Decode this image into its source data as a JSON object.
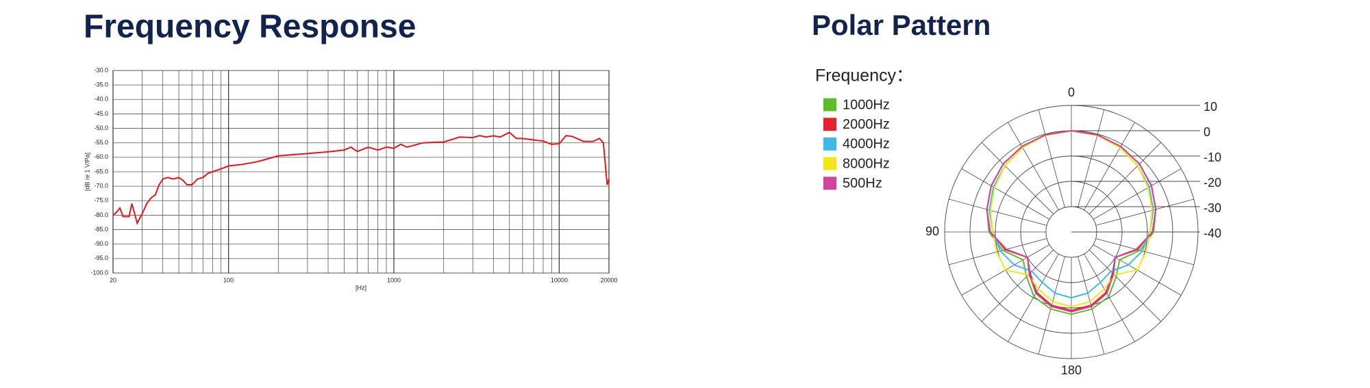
{
  "chart_data": [
    {
      "type": "line",
      "title": "Frequency Response",
      "xlabel": "[Hz]",
      "ylabel": "[dB re 1 V/Pa]",
      "xscale": "log",
      "grid": true,
      "x": [
        20,
        21,
        22,
        23,
        25,
        26,
        28,
        30,
        32,
        34,
        36,
        38,
        40,
        43,
        46,
        50,
        53,
        56,
        60,
        65,
        70,
        75,
        80,
        90,
        100,
        120,
        150,
        200,
        300,
        400,
        500,
        550,
        600,
        700,
        800,
        900,
        1000,
        1100,
        1200,
        1500,
        2000,
        2200,
        2500,
        3000,
        3300,
        3600,
        4000,
        4400,
        5000,
        5500,
        6000,
        7000,
        8000,
        9000,
        10000,
        11000,
        12000,
        14000,
        16000,
        17500,
        18500,
        19500,
        20000
      ],
      "series": [
        {
          "name": "Frequency Response",
          "color": "#e8141c",
          "values": [
            -80,
            -79,
            -77.5,
            -80.5,
            -80.5,
            -76,
            -82.8,
            -79.5,
            -76,
            -74,
            -73,
            -69.5,
            -67.5,
            -67,
            -67.5,
            -67,
            -68,
            -69.5,
            -69.5,
            -67.5,
            -67,
            -65.5,
            -65,
            -64,
            -63,
            -62.5,
            -61.5,
            -59.5,
            -58.7,
            -58.1,
            -57.5,
            -56.5,
            -58,
            -56.5,
            -57.5,
            -56.5,
            -56.9,
            -55.5,
            -56.5,
            -55,
            -54.7,
            -54,
            -53,
            -53.2,
            -52.5,
            -53,
            -52.6,
            -53,
            -51.4,
            -53.5,
            -53.5,
            -54,
            -54.4,
            -55.5,
            -55.3,
            -52.5,
            -52.8,
            -54.5,
            -54.5,
            -53.5,
            -55,
            -69.5,
            -67.5
          ]
        }
      ],
      "xlim": [
        20,
        20000
      ],
      "xticks": [
        20,
        100,
        1000,
        10000,
        20000
      ],
      "xminorticks": [
        30,
        40,
        50,
        60,
        70,
        80,
        90,
        200,
        300,
        400,
        500,
        600,
        700,
        800,
        900,
        2000,
        3000,
        4000,
        5000,
        6000,
        7000,
        8000,
        9000
      ],
      "ylim": [
        -100,
        -30
      ],
      "yticks": [
        {
          "value": -30,
          "label": "-30.0"
        },
        {
          "value": -35,
          "label": "-35.0"
        },
        {
          "value": -40,
          "label": "-40.0"
        },
        {
          "value": -45,
          "label": "-45.0"
        },
        {
          "value": -50,
          "label": "-50.0"
        },
        {
          "value": -55,
          "label": "-55.0"
        },
        {
          "value": -60,
          "label": "-60.0"
        },
        {
          "value": -65,
          "label": "-65.0"
        },
        {
          "value": -70,
          "label": "-70.0"
        },
        {
          "value": -75,
          "label": "-75.0"
        },
        {
          "value": -80,
          "label": "-80.0"
        },
        {
          "value": -85,
          "label": "-85.0"
        },
        {
          "value": -90,
          "label": "-90.0"
        },
        {
          "value": -95,
          "label": "-95.0"
        },
        {
          "value": -100,
          "label": "-100.0"
        }
      ]
    },
    {
      "type": "polar",
      "title": "Polar Pattern",
      "legend_title": "Frequency：",
      "theta": [
        0,
        15,
        30,
        45,
        60,
        75,
        90,
        105,
        120,
        135,
        150,
        165,
        180,
        195,
        210,
        225,
        240,
        255,
        270,
        285,
        300,
        315,
        330,
        345
      ],
      "thetaticks": [
        0,
        90,
        180
      ],
      "rlim": [
        -40,
        10
      ],
      "rticks": [
        -40,
        -30,
        -20,
        -10,
        0,
        10
      ],
      "series": [
        {
          "name": "1000Hz",
          "color": "#5dbb2e",
          "values": [
            0,
            -0.3,
            -1,
            -2,
            -3.5,
            -5.5,
            -7.5,
            -12,
            -18,
            -15,
            -10.5,
            -8.5,
            -7.5,
            -8.5,
            -10.5,
            -15,
            -18,
            -12,
            -7.5,
            -5.5,
            -3.5,
            -2,
            -1,
            -0.3
          ]
        },
        {
          "name": "2000Hz",
          "color": "#e3242b",
          "values": [
            0,
            -0.3,
            -1,
            -2,
            -3.5,
            -5.5,
            -8,
            -13,
            -20,
            -17,
            -12.5,
            -10,
            -9,
            -10,
            -12.5,
            -17,
            -20,
            -13,
            -8,
            -5.5,
            -3.5,
            -2,
            -1,
            -0.3
          ]
        },
        {
          "name": "4000Hz",
          "color": "#3fb8e6",
          "values": [
            0,
            -0.5,
            -1.5,
            -3,
            -4.5,
            -6.5,
            -9,
            -11,
            -14,
            -18,
            -17,
            -15,
            -14,
            -15,
            -17,
            -18,
            -14,
            -11,
            -9,
            -6.5,
            -4.5,
            -3,
            -1.5,
            -0.5
          ]
        },
        {
          "name": "8000Hz",
          "color": "#f2e61a",
          "values": [
            0,
            -0.5,
            -1.5,
            -3,
            -5,
            -7,
            -9,
            -9.5,
            -10,
            -16,
            -14,
            -11.5,
            -10.5,
            -11.5,
            -14,
            -16,
            -10,
            -9.5,
            -9,
            -7,
            -5,
            -3,
            -1.5,
            -0.5
          ]
        },
        {
          "name": "500Hz",
          "color": "#d0449a",
          "values": [
            0,
            -0.3,
            -1,
            -2,
            -3.5,
            -5.5,
            -8,
            -13.5,
            -20,
            -16.5,
            -12,
            -9.5,
            -8.5,
            -9.5,
            -12,
            -16.5,
            -20,
            -13.5,
            -8,
            -5.5,
            -3.5,
            -2,
            -1,
            -0.3
          ]
        }
      ]
    }
  ]
}
